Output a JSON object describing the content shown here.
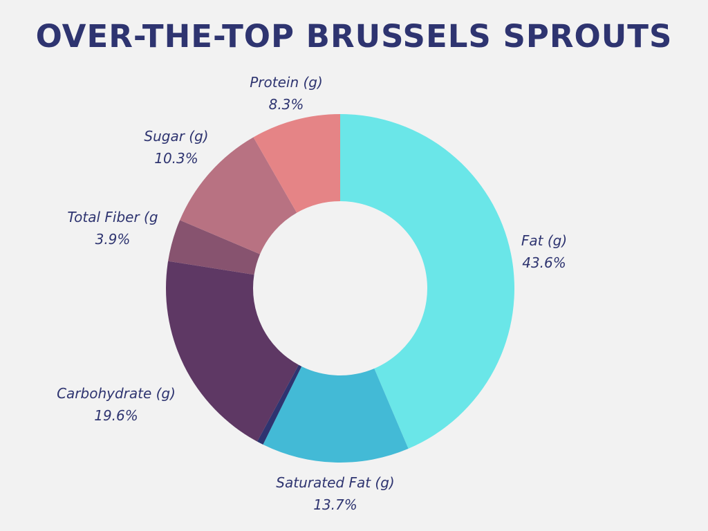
{
  "chart_data": {
    "type": "pie",
    "title": "OVER-THE-TOP BRUSSELS SPROUTS",
    "donut": true,
    "start": "top, clockwise",
    "slices": [
      {
        "label": "Fat (g)",
        "value": 43.6,
        "display": "43.6%",
        "color": "#6ae6e8"
      },
      {
        "label": "Saturated Fat (g)",
        "value": 13.7,
        "display": "13.7%",
        "color": "#43bad6"
      },
      {
        "label": "",
        "value": 0.6,
        "display": "",
        "color": "#2e3470"
      },
      {
        "label": "Carbohydrate (g)",
        "value": 19.6,
        "display": "19.6%",
        "color": "#5e3864"
      },
      {
        "label": "Total Fiber (g",
        "value": 3.9,
        "display": "3.9%",
        "color": "#87536f"
      },
      {
        "label": "Sugar (g)",
        "value": 10.3,
        "display": "10.3%",
        "color": "#b87282"
      },
      {
        "label": "Protein (g)",
        "value": 8.3,
        "display": "8.3%",
        "color": "#e58486"
      }
    ]
  }
}
